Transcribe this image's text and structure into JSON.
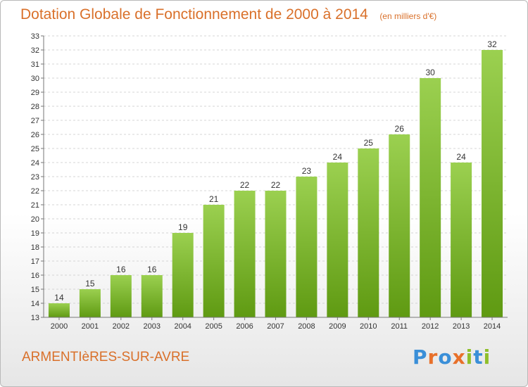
{
  "header": {
    "title": "Dotation Globale de Fonctionnement de 2000 à 2014",
    "unit": "(en milliers d'€)"
  },
  "footer": {
    "commune": "ARMENTIèRES-SUR-AVRE",
    "logo": [
      "P",
      "r",
      "o",
      "x",
      "i",
      "t",
      "i"
    ]
  },
  "colors": {
    "title": "#d9702a",
    "bar_top": "#9bd050",
    "bar_bottom": "#5f9a12",
    "logo_letters": [
      "#3a8fd8",
      "#e8702a",
      "#3a8fd8",
      "#e8702a",
      "#8fbf2a",
      "#3a8fd8",
      "#8fbf2a"
    ]
  },
  "chart_data": {
    "type": "bar",
    "title": "Dotation Globale de Fonctionnement de 2000 à 2014",
    "categories": [
      "2000",
      "2001",
      "2002",
      "2003",
      "2004",
      "2005",
      "2006",
      "2007",
      "2008",
      "2009",
      "2010",
      "2011",
      "2012",
      "2013",
      "2014"
    ],
    "values": [
      14,
      15,
      16,
      16,
      19,
      21,
      22,
      22,
      23,
      24,
      25,
      26,
      30,
      24,
      32
    ],
    "ylim": [
      13,
      33
    ],
    "yticks": [
      13,
      14,
      15,
      16,
      17,
      18,
      19,
      20,
      21,
      22,
      23,
      24,
      25,
      26,
      27,
      28,
      29,
      30,
      31,
      32,
      33
    ],
    "grid": true,
    "data_labels": true
  }
}
